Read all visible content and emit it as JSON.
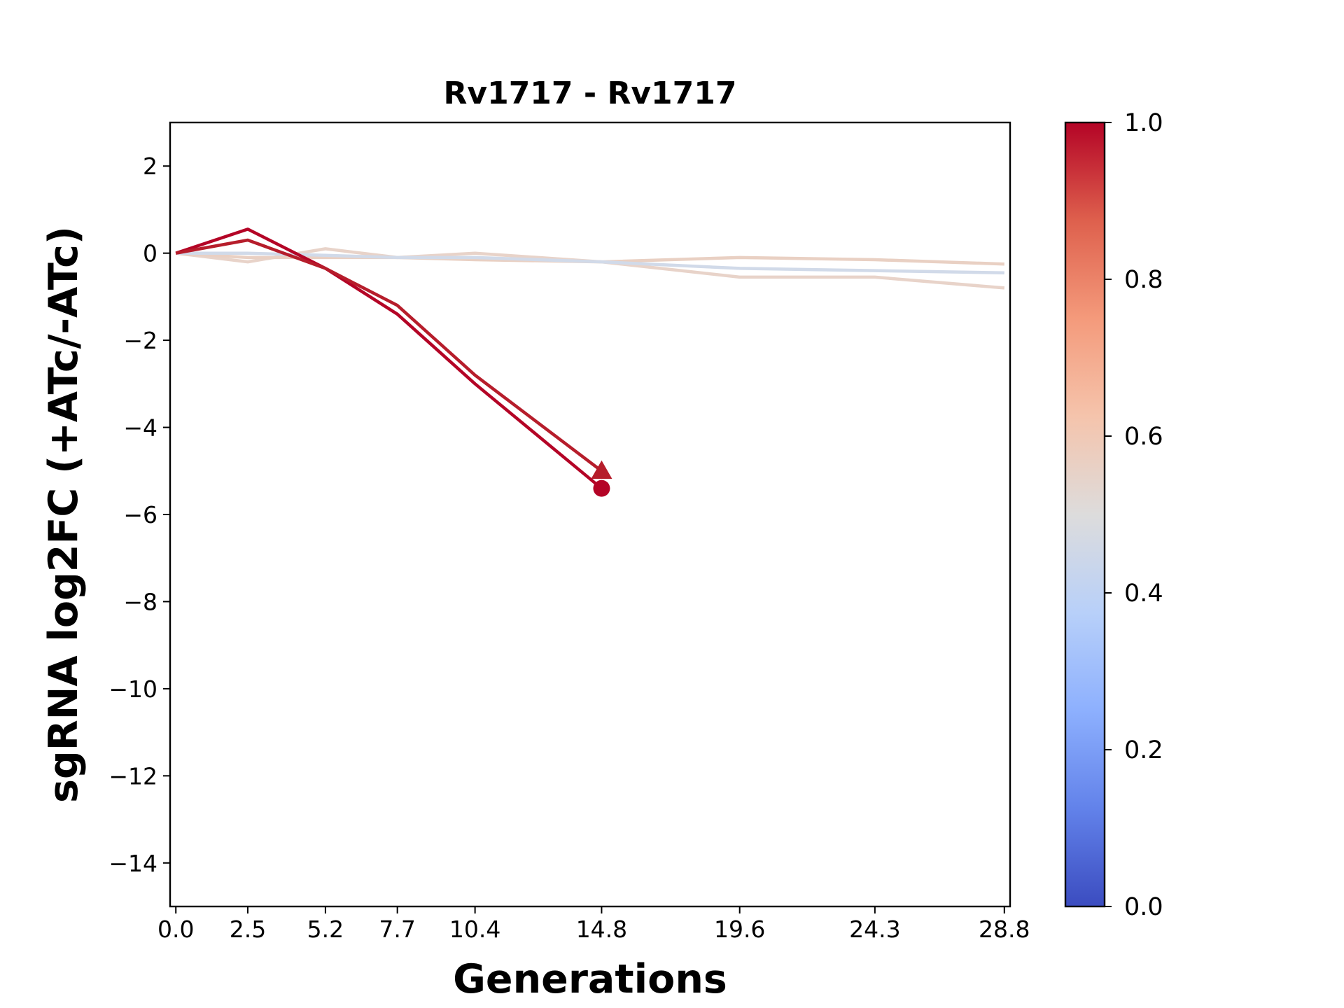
{
  "chart_data": {
    "type": "line",
    "title": "Rv1717 - Rv1717",
    "xlabel": "Generations",
    "ylabel": "sgRNA log2FC (+ATc/-ATc)",
    "xlim": [
      -0.2,
      29.0
    ],
    "ylim": [
      -15,
      3
    ],
    "xticks": [
      {
        "value": 0.0,
        "label": "0.0"
      },
      {
        "value": 2.5,
        "label": "2.5"
      },
      {
        "value": 5.2,
        "label": "5.2"
      },
      {
        "value": 7.7,
        "label": "7.7"
      },
      {
        "value": 10.4,
        "label": "10.4"
      },
      {
        "value": 14.8,
        "label": "14.8"
      },
      {
        "value": 19.6,
        "label": "19.6"
      },
      {
        "value": 24.3,
        "label": "24.3"
      },
      {
        "value": 28.8,
        "label": "28.8"
      }
    ],
    "yticks": [
      {
        "value": 2,
        "label": "2"
      },
      {
        "value": 0,
        "label": "0"
      },
      {
        "value": -2,
        "label": "−2"
      },
      {
        "value": -4,
        "label": "−4"
      },
      {
        "value": -6,
        "label": "−6"
      },
      {
        "value": -8,
        "label": "−8"
      },
      {
        "value": -10,
        "label": "−10"
      },
      {
        "value": -12,
        "label": "−12"
      },
      {
        "value": -14,
        "label": "−14"
      }
    ],
    "grid": false,
    "series": [
      {
        "color": "#e8d3c9",
        "x": [
          0.0,
          2.5,
          5.2,
          7.7,
          10.4,
          14.8,
          19.6,
          24.3,
          28.8
        ],
        "y": [
          0.0,
          -0.2,
          0.1,
          -0.1,
          0.0,
          -0.2,
          -0.55,
          -0.55,
          -0.8
        ]
      },
      {
        "color": "#e9d0c3",
        "x": [
          0.0,
          2.5,
          5.2,
          7.7,
          10.4,
          14.8,
          19.6,
          24.3,
          28.8
        ],
        "y": [
          0.0,
          -0.1,
          -0.1,
          -0.1,
          -0.15,
          -0.2,
          -0.1,
          -0.15,
          -0.25
        ]
      },
      {
        "color": "#d1dae9",
        "x": [
          0.0,
          2.5,
          5.2,
          7.7,
          10.4,
          14.8,
          19.6,
          24.3,
          28.8
        ],
        "y": [
          0.0,
          0.0,
          -0.05,
          -0.1,
          -0.1,
          -0.2,
          -0.35,
          -0.4,
          -0.45
        ]
      },
      {
        "color": "#b40426",
        "x": [
          0.0,
          2.5,
          5.2,
          7.7,
          10.4,
          14.8
        ],
        "y": [
          0.0,
          0.55,
          -0.35,
          -1.4,
          -3.0,
          -5.4
        ],
        "end_marker": "circle"
      },
      {
        "color": "#b61d2b",
        "x": [
          0.0,
          2.5,
          5.2,
          7.7,
          10.4,
          14.8
        ],
        "y": [
          0.0,
          0.3,
          -0.35,
          -1.2,
          -2.8,
          -5.0
        ],
        "end_marker": "triangle"
      }
    ],
    "colorbar": {
      "min": 0.0,
      "max": 1.0,
      "colormap": "coolwarm",
      "colors": [
        "#3b4cc0",
        "#6282ea",
        "#8db0fe",
        "#b8d0f9",
        "#dddcdc",
        "#f5c4ac",
        "#f49a7b",
        "#de604d",
        "#b40426"
      ],
      "ticks": [
        {
          "value": 0.0,
          "label": "0.0"
        },
        {
          "value": 0.2,
          "label": "0.2"
        },
        {
          "value": 0.4,
          "label": "0.4"
        },
        {
          "value": 0.6,
          "label": "0.6"
        },
        {
          "value": 0.8,
          "label": "0.8"
        },
        {
          "value": 1.0,
          "label": "1.0"
        }
      ]
    }
  }
}
